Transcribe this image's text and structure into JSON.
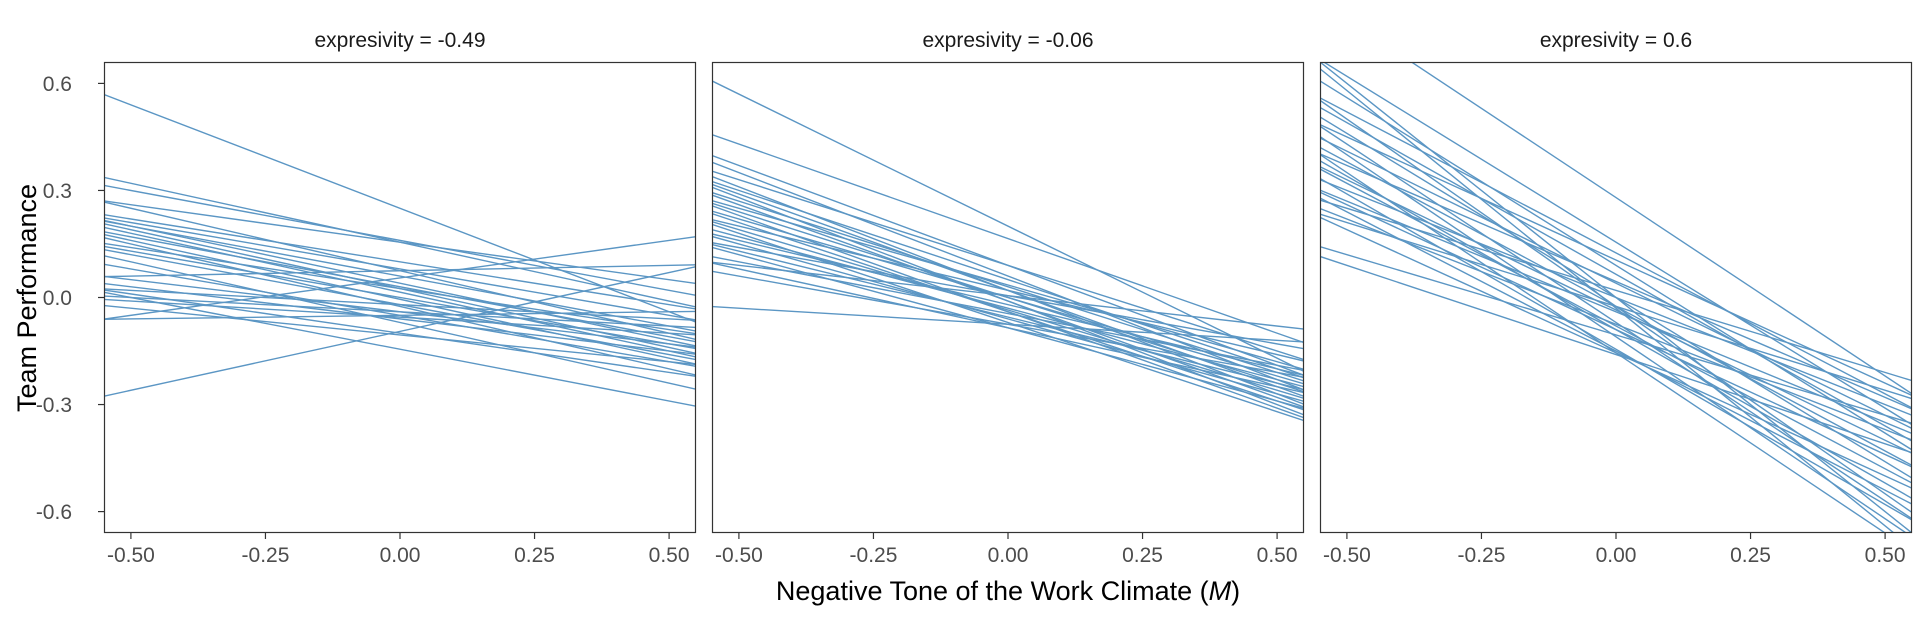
{
  "chart_data": {
    "type": "line",
    "ylabel": "Team Performance",
    "xlabel": {
      "text": "Negative Tone of the Work Climate (",
      "italic": "M",
      "close": ")"
    },
    "xlim": [
      -0.55,
      0.55
    ],
    "ylim": [
      -0.66,
      0.66
    ],
    "x_ticks": [
      -0.5,
      -0.25,
      0.0,
      0.25,
      0.5
    ],
    "x_tick_labels": [
      "-0.50",
      "-0.25",
      "0.00",
      "0.25",
      "0.50"
    ],
    "y_ticks": [
      0.6,
      0.3,
      0.0,
      -0.3,
      -0.6
    ],
    "y_tick_labels": [
      "0.6",
      "0.3",
      "0.0",
      "-0.3",
      "-0.6"
    ],
    "line_color": "#5b96c4",
    "panels": [
      {
        "title": "expresivity = -0.49",
        "lines": [
          [
            0.54,
            -0.04
          ],
          [
            0.32,
            -0.01
          ],
          [
            0.3,
            0.02
          ],
          [
            0.26,
            0.05
          ],
          [
            0.25,
            -0.1
          ],
          [
            0.22,
            -0.02
          ],
          [
            0.21,
            -0.05
          ],
          [
            0.2,
            -0.08
          ],
          [
            0.2,
            -0.12
          ],
          [
            0.19,
            -0.14
          ],
          [
            0.18,
            -0.15
          ],
          [
            0.17,
            -0.11
          ],
          [
            0.16,
            -0.17
          ],
          [
            0.15,
            -0.2
          ],
          [
            0.14,
            -0.09
          ],
          [
            0.13,
            -0.13
          ],
          [
            0.12,
            -0.16
          ],
          [
            0.1,
            -0.24
          ],
          [
            0.08,
            -0.18
          ],
          [
            0.06,
            0.09
          ],
          [
            0.05,
            -0.13
          ],
          [
            0.03,
            -0.15
          ],
          [
            0.02,
            -0.06
          ],
          [
            0.01,
            -0.21
          ],
          [
            0.0,
            -0.29
          ],
          [
            0.0,
            -0.08
          ],
          [
            -0.01,
            -0.1
          ],
          [
            -0.03,
            -0.18
          ],
          [
            -0.05,
            0.16
          ],
          [
            -0.06,
            -0.04
          ],
          [
            -0.26,
            0.07
          ]
        ]
      },
      {
        "title": "expresivity = -0.06",
        "lines": [
          [
            0.57,
            -0.17
          ],
          [
            0.43,
            -0.1
          ],
          [
            0.37,
            -0.19
          ],
          [
            0.35,
            -0.23
          ],
          [
            0.33,
            -0.15
          ],
          [
            0.31,
            -0.27
          ],
          [
            0.3,
            -0.2
          ],
          [
            0.29,
            -0.25
          ],
          [
            0.28,
            -0.3
          ],
          [
            0.27,
            -0.21
          ],
          [
            0.26,
            -0.28
          ],
          [
            0.25,
            -0.18
          ],
          [
            0.24,
            -0.24
          ],
          [
            0.23,
            -0.31
          ],
          [
            0.22,
            -0.22
          ],
          [
            0.21,
            -0.29
          ],
          [
            0.2,
            -0.16
          ],
          [
            0.19,
            -0.26
          ],
          [
            0.18,
            -0.32
          ],
          [
            0.17,
            -0.23
          ],
          [
            0.16,
            -0.2
          ],
          [
            0.15,
            -0.27
          ],
          [
            0.14,
            -0.13
          ],
          [
            0.13,
            -0.24
          ],
          [
            0.12,
            -0.29
          ],
          [
            0.1,
            -0.19
          ],
          [
            0.09,
            -0.08
          ],
          [
            0.08,
            -0.25
          ],
          [
            0.06,
            -0.21
          ],
          [
            -0.03,
            -0.12
          ]
        ]
      },
      {
        "title": "expresivity = 0.6",
        "lines": [
          [
            0.78,
            -0.22
          ],
          [
            0.62,
            -0.31
          ],
          [
            0.6,
            -0.6
          ],
          [
            0.58,
            -0.64
          ],
          [
            0.56,
            -0.38
          ],
          [
            0.52,
            -0.27
          ],
          [
            0.5,
            -0.55
          ],
          [
            0.49,
            -0.36
          ],
          [
            0.46,
            -0.46
          ],
          [
            0.45,
            -0.24
          ],
          [
            0.43,
            -0.57
          ],
          [
            0.41,
            -0.33
          ],
          [
            0.4,
            -0.62
          ],
          [
            0.38,
            -0.43
          ],
          [
            0.37,
            -0.28
          ],
          [
            0.35,
            -0.66
          ],
          [
            0.34,
            -0.52
          ],
          [
            0.33,
            -0.4
          ],
          [
            0.32,
            -0.48
          ],
          [
            0.3,
            -0.3
          ],
          [
            0.29,
            -0.58
          ],
          [
            0.27,
            -0.35
          ],
          [
            0.26,
            -0.44
          ],
          [
            0.25,
            -0.21
          ],
          [
            0.24,
            -0.54
          ],
          [
            0.22,
            -0.37
          ],
          [
            0.21,
            -0.26
          ],
          [
            0.19,
            -0.5
          ],
          [
            0.12,
            -0.33
          ],
          [
            0.09,
            -0.41
          ]
        ]
      }
    ]
  }
}
